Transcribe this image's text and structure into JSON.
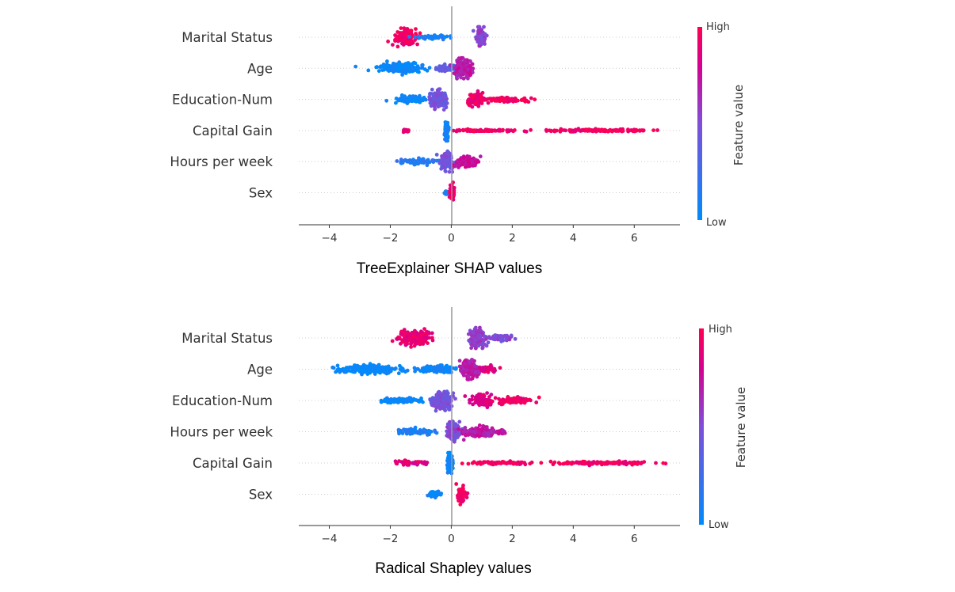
{
  "chart_data": [
    {
      "type": "scatter",
      "subtype": "shap-beeswarm",
      "caption": "TreeExplainer SHAP values",
      "xlim": [
        -5,
        7.5
      ],
      "xticks": [
        -4,
        -2,
        0,
        2,
        4,
        6
      ],
      "xtick_labels": [
        "−4",
        "−2",
        "0",
        "2",
        "4",
        "6"
      ],
      "colorbar": {
        "high_label": "High",
        "low_label": "Low",
        "axis_label": "Feature value",
        "colors": [
          "#008bfb",
          "#ff0052"
        ]
      },
      "features": [
        {
          "name": "Marital Status",
          "clusters": [
            {
              "center": -1.5,
              "spread": 0.3,
              "thickness": 0.9,
              "count": 160,
              "color_value": 0.95
            },
            {
              "center": -0.6,
              "spread": 0.6,
              "thickness": 0.2,
              "count": 50,
              "color_value": 0.1
            },
            {
              "center": 0.95,
              "spread": 0.12,
              "thickness": 1.0,
              "count": 140,
              "color_value": 0.55
            }
          ]
        },
        {
          "name": "Age",
          "clusters": [
            {
              "center": -1.7,
              "spread": 0.65,
              "thickness": 0.5,
              "count": 230,
              "color_value": 0.02
            },
            {
              "center": -0.15,
              "spread": 0.35,
              "thickness": 0.35,
              "count": 70,
              "color_value": 0.35
            },
            {
              "center": 0.4,
              "spread": 0.25,
              "thickness": 1.0,
              "count": 180,
              "color_value": 0.7
            }
          ]
        },
        {
          "name": "Education-Num",
          "clusters": [
            {
              "center": -1.3,
              "spread": 0.45,
              "thickness": 0.35,
              "count": 120,
              "color_value": 0.03
            },
            {
              "center": -0.4,
              "spread": 0.22,
              "thickness": 1.0,
              "count": 160,
              "color_value": 0.45
            },
            {
              "center": 0.8,
              "spread": 0.25,
              "thickness": 0.75,
              "count": 80,
              "color_value": 0.9
            },
            {
              "center": 1.7,
              "spread": 0.6,
              "thickness": 0.3,
              "count": 110,
              "color_value": 0.95
            }
          ]
        },
        {
          "name": "Capital Gain",
          "clusters": [
            {
              "center": -1.5,
              "spread": 0.08,
              "thickness": 0.2,
              "count": 14,
              "color_value": 0.95
            },
            {
              "center": -0.15,
              "spread": 0.05,
              "thickness": 1.0,
              "count": 110,
              "color_value": 0.05
            },
            {
              "center": 1.1,
              "spread": 1.0,
              "thickness": 0.15,
              "count": 90,
              "color_value": 0.95
            },
            {
              "center": 4.8,
              "spread": 1.45,
              "thickness": 0.15,
              "count": 140,
              "color_value": 0.95
            }
          ]
        },
        {
          "name": "Hours per week",
          "clusters": [
            {
              "center": -1.1,
              "spread": 0.55,
              "thickness": 0.3,
              "count": 80,
              "color_value": 0.15
            },
            {
              "center": -0.1,
              "spread": 0.2,
              "thickness": 1.0,
              "count": 130,
              "color_value": 0.45
            },
            {
              "center": 0.5,
              "spread": 0.35,
              "thickness": 0.6,
              "count": 90,
              "color_value": 0.75
            }
          ]
        },
        {
          "name": "Sex",
          "clusters": [
            {
              "center": -0.15,
              "spread": 0.1,
              "thickness": 0.25,
              "count": 20,
              "color_value": 0.1
            },
            {
              "center": 0.02,
              "spread": 0.06,
              "thickness": 1.0,
              "count": 70,
              "color_value": 0.95
            }
          ]
        }
      ]
    },
    {
      "type": "scatter",
      "subtype": "shap-beeswarm",
      "caption": "Radical Shapley values",
      "xlim": [
        -5,
        7.5
      ],
      "xticks": [
        -4,
        -2,
        0,
        2,
        4,
        6
      ],
      "xtick_labels": [
        "−4",
        "−2",
        "0",
        "2",
        "4",
        "6"
      ],
      "colorbar": {
        "high_label": "High",
        "low_label": "Low",
        "axis_label": "Feature value",
        "colors": [
          "#008bfb",
          "#ff0052"
        ]
      },
      "features": [
        {
          "name": "Marital Status",
          "clusters": [
            {
              "center": -1.2,
              "spread": 0.45,
              "thickness": 0.85,
              "count": 200,
              "color_value": 0.9
            },
            {
              "center": 0.85,
              "spread": 0.25,
              "thickness": 1.0,
              "count": 160,
              "color_value": 0.55
            },
            {
              "center": 1.6,
              "spread": 0.3,
              "thickness": 0.35,
              "count": 50,
              "color_value": 0.5
            }
          ]
        },
        {
          "name": "Age",
          "clusters": [
            {
              "center": -2.6,
              "spread": 0.85,
              "thickness": 0.45,
              "count": 260,
              "color_value": 0.02
            },
            {
              "center": -0.5,
              "spread": 0.6,
              "thickness": 0.4,
              "count": 120,
              "color_value": 0.05
            },
            {
              "center": 0.6,
              "spread": 0.25,
              "thickness": 1.0,
              "count": 180,
              "color_value": 0.7
            },
            {
              "center": 1.2,
              "spread": 0.25,
              "thickness": 0.4,
              "count": 40,
              "color_value": 0.85
            }
          ]
        },
        {
          "name": "Education-Num",
          "clusters": [
            {
              "center": -1.7,
              "spread": 0.55,
              "thickness": 0.3,
              "count": 120,
              "color_value": 0.03
            },
            {
              "center": -0.3,
              "spread": 0.3,
              "thickness": 1.0,
              "count": 170,
              "color_value": 0.45
            },
            {
              "center": 1.0,
              "spread": 0.3,
              "thickness": 0.7,
              "count": 90,
              "color_value": 0.85
            },
            {
              "center": 2.1,
              "spread": 0.5,
              "thickness": 0.35,
              "count": 90,
              "color_value": 0.95
            }
          ]
        },
        {
          "name": "Hours per week",
          "clusters": [
            {
              "center": -1.2,
              "spread": 0.55,
              "thickness": 0.3,
              "count": 100,
              "color_value": 0.1
            },
            {
              "center": 0.05,
              "spread": 0.22,
              "thickness": 1.0,
              "count": 140,
              "color_value": 0.5
            },
            {
              "center": 0.9,
              "spread": 0.45,
              "thickness": 0.55,
              "count": 100,
              "color_value": 0.7
            },
            {
              "center": 1.6,
              "spread": 0.2,
              "thickness": 0.3,
              "count": 30,
              "color_value": 0.7
            }
          ]
        },
        {
          "name": "Capital Gain",
          "clusters": [
            {
              "center": -1.3,
              "spread": 0.45,
              "thickness": 0.25,
              "count": 45,
              "color_value": 0.85
            },
            {
              "center": -0.05,
              "spread": 0.08,
              "thickness": 1.0,
              "count": 120,
              "color_value": 0.05
            },
            {
              "center": 1.6,
              "spread": 0.95,
              "thickness": 0.15,
              "count": 80,
              "color_value": 0.95
            },
            {
              "center": 5.0,
              "spread": 1.5,
              "thickness": 0.15,
              "count": 150,
              "color_value": 0.95
            }
          ]
        },
        {
          "name": "Sex",
          "clusters": [
            {
              "center": -0.55,
              "spread": 0.18,
              "thickness": 0.35,
              "count": 45,
              "color_value": 0.05
            },
            {
              "center": 0.35,
              "spread": 0.15,
              "thickness": 1.0,
              "count": 60,
              "color_value": 0.95
            }
          ]
        }
      ]
    }
  ]
}
